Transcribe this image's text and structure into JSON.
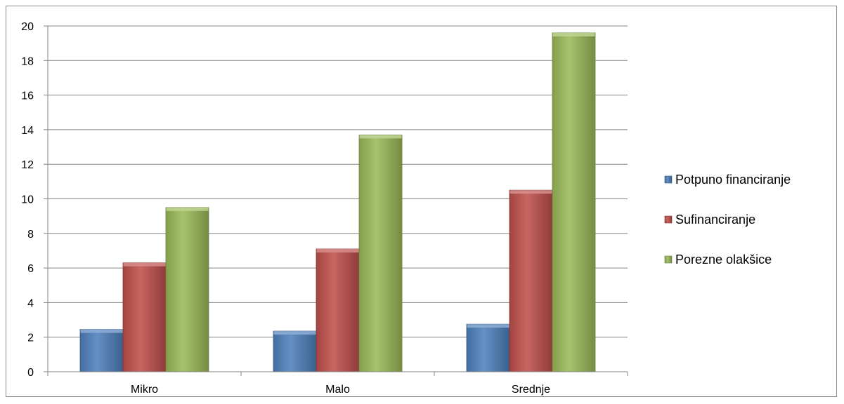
{
  "chart_data": {
    "type": "bar",
    "categories": [
      "Mikro",
      "Malo",
      "Srednje"
    ],
    "series": [
      {
        "name": "Potpuno financiranje",
        "values": [
          2.45,
          2.35,
          2.75
        ],
        "color": "#4f81bd"
      },
      {
        "name": "Sufinanciranje",
        "values": [
          6.3,
          7.1,
          10.5
        ],
        "color": "#c0504d"
      },
      {
        "name": "Porezne olakšice",
        "values": [
          9.5,
          13.7,
          19.6
        ],
        "color": "#9bbb59"
      }
    ],
    "ylim": [
      0,
      20
    ],
    "yticks": [
      0,
      2,
      4,
      6,
      8,
      10,
      12,
      14,
      16,
      18,
      20
    ],
    "grid": true,
    "legend_position": "right",
    "title": "",
    "xlabel": "",
    "ylabel": ""
  }
}
